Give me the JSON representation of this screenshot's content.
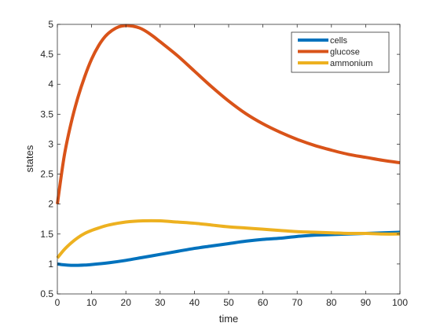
{
  "chart_data": {
    "type": "line",
    "title": "",
    "xlabel": "time",
    "ylabel": "states",
    "xlim": [
      0,
      100
    ],
    "ylim": [
      0.5,
      5
    ],
    "xticks": [
      0,
      10,
      20,
      30,
      40,
      50,
      60,
      70,
      80,
      90,
      100
    ],
    "yticks": [
      0.5,
      1,
      1.5,
      2,
      2.5,
      3,
      3.5,
      4,
      4.5,
      5
    ],
    "ytick_labels": [
      "0.5",
      "1",
      "1.5",
      "2",
      "2.5",
      "3",
      "3.5",
      "4",
      "4.5",
      "5"
    ],
    "grid": false,
    "legend_position": "top-right",
    "series": [
      {
        "name": "cells",
        "color": "#0072BD",
        "x": [
          0,
          2,
          4,
          6,
          8,
          10,
          15,
          20,
          25,
          30,
          35,
          40,
          45,
          50,
          55,
          60,
          65,
          70,
          75,
          80,
          85,
          90,
          95,
          100
        ],
        "y": [
          1.0,
          0.985,
          0.978,
          0.978,
          0.982,
          0.99,
          1.02,
          1.06,
          1.11,
          1.16,
          1.21,
          1.26,
          1.3,
          1.34,
          1.38,
          1.41,
          1.43,
          1.46,
          1.48,
          1.49,
          1.5,
          1.51,
          1.52,
          1.53
        ]
      },
      {
        "name": "glucose",
        "color": "#D95319",
        "x": [
          0,
          2,
          4,
          6,
          8,
          10,
          12,
          14,
          16,
          18,
          20,
          22,
          24,
          26,
          28,
          30,
          35,
          40,
          45,
          50,
          55,
          60,
          65,
          70,
          75,
          80,
          85,
          90,
          95,
          100
        ],
        "y": [
          2.0,
          2.8,
          3.35,
          3.78,
          4.13,
          4.42,
          4.64,
          4.8,
          4.9,
          4.96,
          4.98,
          4.97,
          4.94,
          4.88,
          4.8,
          4.71,
          4.48,
          4.22,
          3.96,
          3.72,
          3.51,
          3.34,
          3.2,
          3.08,
          2.98,
          2.9,
          2.83,
          2.78,
          2.73,
          2.69
        ]
      },
      {
        "name": "ammonium",
        "color": "#EDB120",
        "x": [
          0,
          2,
          4,
          6,
          8,
          10,
          12,
          15,
          20,
          25,
          30,
          35,
          40,
          45,
          50,
          55,
          60,
          65,
          70,
          75,
          80,
          85,
          90,
          95,
          100
        ],
        "y": [
          1.1,
          1.24,
          1.35,
          1.44,
          1.51,
          1.56,
          1.6,
          1.65,
          1.7,
          1.72,
          1.72,
          1.7,
          1.68,
          1.65,
          1.62,
          1.6,
          1.58,
          1.56,
          1.54,
          1.53,
          1.52,
          1.51,
          1.51,
          1.5,
          1.5
        ]
      }
    ]
  }
}
